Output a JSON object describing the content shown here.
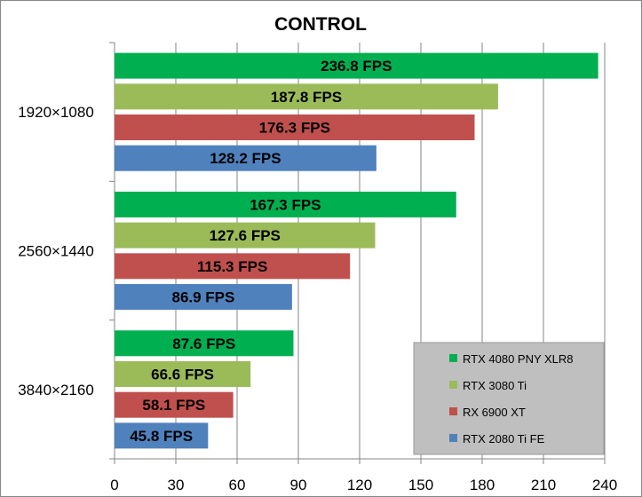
{
  "chart_data": {
    "type": "bar",
    "orientation": "horizontal",
    "title": "CONTROL",
    "categories": [
      "1920×1080",
      "2560×1440",
      "3840×2160"
    ],
    "value_suffix": " FPS",
    "series": [
      {
        "name": "RTX 4080 PNY XLR8",
        "color": "#00B050",
        "values": [
          236.8,
          167.3,
          87.6
        ]
      },
      {
        "name": "RTX 3080 Ti",
        "color": "#9BBB59",
        "values": [
          187.8,
          127.6,
          66.6
        ]
      },
      {
        "name": "RX 6900 XT",
        "color": "#C0504D",
        "values": [
          176.3,
          115.3,
          58.1
        ]
      },
      {
        "name": "RTX 2080 Ti FE",
        "color": "#4F81BD",
        "values": [
          128.2,
          86.9,
          45.8
        ]
      }
    ],
    "xlim": [
      0,
      240
    ],
    "xticks": [
      0,
      30,
      60,
      90,
      120,
      150,
      180,
      210,
      240
    ],
    "grid": true,
    "legend_position": "bottom-right",
    "legend_background": "#BFBFBF"
  }
}
